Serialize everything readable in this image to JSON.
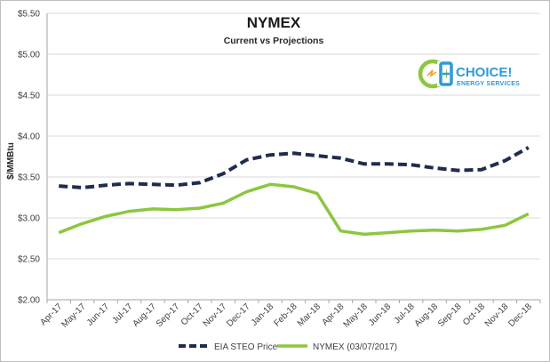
{
  "logo": {
    "main": "CHOICE!",
    "sub": "ENERGY SERVICES"
  },
  "colors": {
    "eia": "#1f2d4d",
    "nymex": "#8dc63f",
    "grid": "#d9d9d9",
    "logo_green": "#8dc63f",
    "logo_blue": "#2e9bd6"
  },
  "chart_data": {
    "type": "line",
    "title": "NYMEX",
    "subtitle": "Current vs Projections",
    "xlabel": "",
    "ylabel": "$/MMBtu",
    "ylim": [
      2.0,
      5.5
    ],
    "ytick_step": 0.5,
    "yticks": [
      "$2.00",
      "$2.50",
      "$3.00",
      "$3.50",
      "$4.00",
      "$4.50",
      "$5.00",
      "$5.50"
    ],
    "grid": true,
    "legend_position": "bottom",
    "categories": [
      "Apr-17",
      "May-17",
      "Jun-17",
      "Jul-17",
      "Aug-17",
      "Sep-17",
      "Oct-17",
      "Nov-17",
      "Dec-17",
      "Jan-18",
      "Feb-18",
      "Mar-18",
      "Apr-18",
      "May-18",
      "Jun-18",
      "Jul-18",
      "Aug-18",
      "Sep-18",
      "Oct-18",
      "Nov-18",
      "Dec-18"
    ],
    "series": [
      {
        "name": "EIA STEO Price",
        "style": "dashed",
        "values": [
          3.39,
          3.37,
          3.4,
          3.42,
          3.41,
          3.4,
          3.43,
          3.54,
          3.71,
          3.77,
          3.79,
          3.76,
          3.73,
          3.66,
          3.66,
          3.65,
          3.61,
          3.58,
          3.59,
          3.7,
          3.86
        ]
      },
      {
        "name": "NYMEX (03/07/2017)",
        "style": "solid",
        "values": [
          2.82,
          2.93,
          3.02,
          3.08,
          3.11,
          3.1,
          3.12,
          3.18,
          3.32,
          3.41,
          3.38,
          3.3,
          2.84,
          2.8,
          2.82,
          2.84,
          2.85,
          2.84,
          2.86,
          2.91,
          3.05
        ]
      }
    ]
  }
}
